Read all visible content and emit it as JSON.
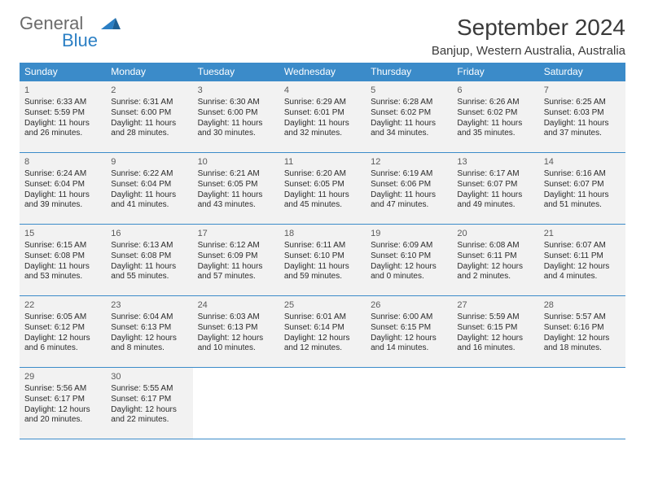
{
  "logo": {
    "text1": "General",
    "text2": "Blue"
  },
  "title": "September 2024",
  "location": "Banjup, Western Australia, Australia",
  "colors": {
    "header_bg": "#3b8bc9",
    "cell_bg": "#f2f2f2",
    "text": "#3a3a3a",
    "logo_gray": "#6b6b6b",
    "logo_blue": "#2b7fc4"
  },
  "day_headers": [
    "Sunday",
    "Monday",
    "Tuesday",
    "Wednesday",
    "Thursday",
    "Friday",
    "Saturday"
  ],
  "weeks": [
    [
      {
        "n": "1",
        "sr": "Sunrise: 6:33 AM",
        "ss": "Sunset: 5:59 PM",
        "d1": "Daylight: 11 hours",
        "d2": "and 26 minutes."
      },
      {
        "n": "2",
        "sr": "Sunrise: 6:31 AM",
        "ss": "Sunset: 6:00 PM",
        "d1": "Daylight: 11 hours",
        "d2": "and 28 minutes."
      },
      {
        "n": "3",
        "sr": "Sunrise: 6:30 AM",
        "ss": "Sunset: 6:00 PM",
        "d1": "Daylight: 11 hours",
        "d2": "and 30 minutes."
      },
      {
        "n": "4",
        "sr": "Sunrise: 6:29 AM",
        "ss": "Sunset: 6:01 PM",
        "d1": "Daylight: 11 hours",
        "d2": "and 32 minutes."
      },
      {
        "n": "5",
        "sr": "Sunrise: 6:28 AM",
        "ss": "Sunset: 6:02 PM",
        "d1": "Daylight: 11 hours",
        "d2": "and 34 minutes."
      },
      {
        "n": "6",
        "sr": "Sunrise: 6:26 AM",
        "ss": "Sunset: 6:02 PM",
        "d1": "Daylight: 11 hours",
        "d2": "and 35 minutes."
      },
      {
        "n": "7",
        "sr": "Sunrise: 6:25 AM",
        "ss": "Sunset: 6:03 PM",
        "d1": "Daylight: 11 hours",
        "d2": "and 37 minutes."
      }
    ],
    [
      {
        "n": "8",
        "sr": "Sunrise: 6:24 AM",
        "ss": "Sunset: 6:04 PM",
        "d1": "Daylight: 11 hours",
        "d2": "and 39 minutes."
      },
      {
        "n": "9",
        "sr": "Sunrise: 6:22 AM",
        "ss": "Sunset: 6:04 PM",
        "d1": "Daylight: 11 hours",
        "d2": "and 41 minutes."
      },
      {
        "n": "10",
        "sr": "Sunrise: 6:21 AM",
        "ss": "Sunset: 6:05 PM",
        "d1": "Daylight: 11 hours",
        "d2": "and 43 minutes."
      },
      {
        "n": "11",
        "sr": "Sunrise: 6:20 AM",
        "ss": "Sunset: 6:05 PM",
        "d1": "Daylight: 11 hours",
        "d2": "and 45 minutes."
      },
      {
        "n": "12",
        "sr": "Sunrise: 6:19 AM",
        "ss": "Sunset: 6:06 PM",
        "d1": "Daylight: 11 hours",
        "d2": "and 47 minutes."
      },
      {
        "n": "13",
        "sr": "Sunrise: 6:17 AM",
        "ss": "Sunset: 6:07 PM",
        "d1": "Daylight: 11 hours",
        "d2": "and 49 minutes."
      },
      {
        "n": "14",
        "sr": "Sunrise: 6:16 AM",
        "ss": "Sunset: 6:07 PM",
        "d1": "Daylight: 11 hours",
        "d2": "and 51 minutes."
      }
    ],
    [
      {
        "n": "15",
        "sr": "Sunrise: 6:15 AM",
        "ss": "Sunset: 6:08 PM",
        "d1": "Daylight: 11 hours",
        "d2": "and 53 minutes."
      },
      {
        "n": "16",
        "sr": "Sunrise: 6:13 AM",
        "ss": "Sunset: 6:08 PM",
        "d1": "Daylight: 11 hours",
        "d2": "and 55 minutes."
      },
      {
        "n": "17",
        "sr": "Sunrise: 6:12 AM",
        "ss": "Sunset: 6:09 PM",
        "d1": "Daylight: 11 hours",
        "d2": "and 57 minutes."
      },
      {
        "n": "18",
        "sr": "Sunrise: 6:11 AM",
        "ss": "Sunset: 6:10 PM",
        "d1": "Daylight: 11 hours",
        "d2": "and 59 minutes."
      },
      {
        "n": "19",
        "sr": "Sunrise: 6:09 AM",
        "ss": "Sunset: 6:10 PM",
        "d1": "Daylight: 12 hours",
        "d2": "and 0 minutes."
      },
      {
        "n": "20",
        "sr": "Sunrise: 6:08 AM",
        "ss": "Sunset: 6:11 PM",
        "d1": "Daylight: 12 hours",
        "d2": "and 2 minutes."
      },
      {
        "n": "21",
        "sr": "Sunrise: 6:07 AM",
        "ss": "Sunset: 6:11 PM",
        "d1": "Daylight: 12 hours",
        "d2": "and 4 minutes."
      }
    ],
    [
      {
        "n": "22",
        "sr": "Sunrise: 6:05 AM",
        "ss": "Sunset: 6:12 PM",
        "d1": "Daylight: 12 hours",
        "d2": "and 6 minutes."
      },
      {
        "n": "23",
        "sr": "Sunrise: 6:04 AM",
        "ss": "Sunset: 6:13 PM",
        "d1": "Daylight: 12 hours",
        "d2": "and 8 minutes."
      },
      {
        "n": "24",
        "sr": "Sunrise: 6:03 AM",
        "ss": "Sunset: 6:13 PM",
        "d1": "Daylight: 12 hours",
        "d2": "and 10 minutes."
      },
      {
        "n": "25",
        "sr": "Sunrise: 6:01 AM",
        "ss": "Sunset: 6:14 PM",
        "d1": "Daylight: 12 hours",
        "d2": "and 12 minutes."
      },
      {
        "n": "26",
        "sr": "Sunrise: 6:00 AM",
        "ss": "Sunset: 6:15 PM",
        "d1": "Daylight: 12 hours",
        "d2": "and 14 minutes."
      },
      {
        "n": "27",
        "sr": "Sunrise: 5:59 AM",
        "ss": "Sunset: 6:15 PM",
        "d1": "Daylight: 12 hours",
        "d2": "and 16 minutes."
      },
      {
        "n": "28",
        "sr": "Sunrise: 5:57 AM",
        "ss": "Sunset: 6:16 PM",
        "d1": "Daylight: 12 hours",
        "d2": "and 18 minutes."
      }
    ],
    [
      {
        "n": "29",
        "sr": "Sunrise: 5:56 AM",
        "ss": "Sunset: 6:17 PM",
        "d1": "Daylight: 12 hours",
        "d2": "and 20 minutes."
      },
      {
        "n": "30",
        "sr": "Sunrise: 5:55 AM",
        "ss": "Sunset: 6:17 PM",
        "d1": "Daylight: 12 hours",
        "d2": "and 22 minutes."
      },
      null,
      null,
      null,
      null,
      null
    ]
  ]
}
